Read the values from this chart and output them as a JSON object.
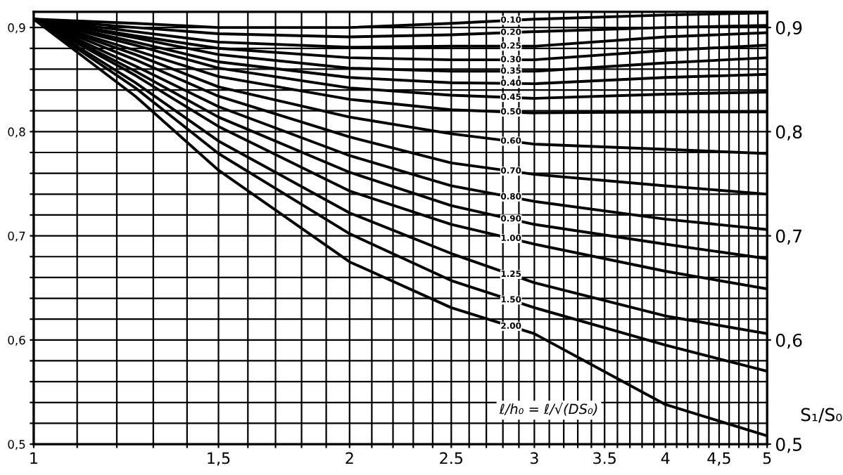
{
  "chart_data": {
    "type": "line",
    "log": "x",
    "y2label": "S₁/S₀",
    "xlim": [
      1,
      5
    ],
    "xticks": [
      {
        "value": 1,
        "label": "1"
      },
      {
        "value": 1.1,
        "label": null
      },
      {
        "value": 1.2,
        "label": null
      },
      {
        "value": 1.3,
        "label": null
      },
      {
        "value": 1.4,
        "label": null
      },
      {
        "value": 1.5,
        "label": "1,5"
      },
      {
        "value": 1.6,
        "label": null
      },
      {
        "value": 1.7,
        "label": null
      },
      {
        "value": 1.8,
        "label": null
      },
      {
        "value": 1.9,
        "label": null
      },
      {
        "value": 2,
        "label": "2"
      },
      {
        "value": 2.1,
        "label": null
      },
      {
        "value": 2.2,
        "label": null
      },
      {
        "value": 2.3,
        "label": null
      },
      {
        "value": 2.4,
        "label": null
      },
      {
        "value": 2.5,
        "label": "2.5"
      },
      {
        "value": 2.6,
        "label": null
      },
      {
        "value": 2.7,
        "label": null
      },
      {
        "value": 2.8,
        "label": null
      },
      {
        "value": 2.9,
        "label": null
      },
      {
        "value": 3,
        "label": "3"
      },
      {
        "value": 3.1,
        "label": null
      },
      {
        "value": 3.2,
        "label": null
      },
      {
        "value": 3.3,
        "label": null
      },
      {
        "value": 3.4,
        "label": null
      },
      {
        "value": 3.5,
        "label": "3.5"
      },
      {
        "value": 3.6,
        "label": null
      },
      {
        "value": 3.7,
        "label": null
      },
      {
        "value": 3.8,
        "label": null
      },
      {
        "value": 3.9,
        "label": null
      },
      {
        "value": 4,
        "label": "4"
      },
      {
        "value": 4.1,
        "label": null
      },
      {
        "value": 4.2,
        "label": null
      },
      {
        "value": 4.3,
        "label": null
      },
      {
        "value": 4.4,
        "label": null
      },
      {
        "value": 4.5,
        "label": "4,5"
      },
      {
        "value": 4.6,
        "label": null
      },
      {
        "value": 4.7,
        "label": null
      },
      {
        "value": 4.8,
        "label": null
      },
      {
        "value": 4.9,
        "label": null
      },
      {
        "value": 5,
        "label": "5"
      }
    ],
    "ylim": [
      0.5,
      0.915
    ],
    "yticks": [
      {
        "value": 0.5,
        "label": "0,5"
      },
      {
        "value": 0.52,
        "label": null
      },
      {
        "value": 0.54,
        "label": null
      },
      {
        "value": 0.56,
        "label": null
      },
      {
        "value": 0.58,
        "label": null
      },
      {
        "value": 0.6,
        "label": "0,6"
      },
      {
        "value": 0.62,
        "label": null
      },
      {
        "value": 0.64,
        "label": null
      },
      {
        "value": 0.66,
        "label": null
      },
      {
        "value": 0.68,
        "label": null
      },
      {
        "value": 0.7,
        "label": "0,7"
      },
      {
        "value": 0.72,
        "label": null
      },
      {
        "value": 0.74,
        "label": null
      },
      {
        "value": 0.76,
        "label": null
      },
      {
        "value": 0.78,
        "label": null
      },
      {
        "value": 0.8,
        "label": "0,8"
      },
      {
        "value": 0.82,
        "label": null
      },
      {
        "value": 0.84,
        "label": null
      },
      {
        "value": 0.86,
        "label": null
      },
      {
        "value": 0.88,
        "label": null
      },
      {
        "value": 0.9,
        "label": "0,9"
      }
    ],
    "y2lim": [
      0.5,
      0.915
    ],
    "y2ticks": [
      {
        "value": 0.5,
        "label": "0,5"
      },
      {
        "value": 0.6,
        "label": "0,6"
      },
      {
        "value": 0.7,
        "label": "0,7"
      },
      {
        "value": 0.8,
        "label": "0,8"
      },
      {
        "value": 0.9,
        "label": "0,9"
      }
    ],
    "grid": true,
    "marker": "none",
    "line_style": "solid",
    "x": [
      1,
      1.25,
      1.5,
      2,
      2.5,
      3,
      4,
      5
    ],
    "series": [
      {
        "name": "0.10",
        "color": "#000000",
        "values": [
          0.908,
          0.904,
          0.9,
          0.9,
          0.904,
          0.908,
          0.912,
          0.914
        ]
      },
      {
        "name": "0.20",
        "color": "#000000",
        "values": [
          0.908,
          0.9,
          0.894,
          0.891,
          0.893,
          0.896,
          0.9,
          0.902
        ]
      },
      {
        "name": "0.25",
        "color": "#000000",
        "values": [
          0.908,
          0.896,
          0.886,
          0.881,
          0.882,
          0.882,
          0.891,
          0.895
        ]
      },
      {
        "name": "0.30",
        "color": "#000000",
        "values": [
          0.908,
          0.892,
          0.88,
          0.871,
          0.869,
          0.869,
          0.878,
          0.883
        ]
      },
      {
        "name": "0.35",
        "color": "#000000",
        "values": [
          0.908,
          0.89,
          0.874,
          0.861,
          0.858,
          0.858,
          0.866,
          0.871
        ]
      },
      {
        "name": "0.40",
        "color": "#000000",
        "values": [
          0.908,
          0.886,
          0.867,
          0.852,
          0.847,
          0.846,
          0.852,
          0.855
        ]
      },
      {
        "name": "0.45",
        "color": "#000000",
        "values": [
          0.908,
          0.883,
          0.861,
          0.842,
          0.835,
          0.832,
          0.836,
          0.838
        ]
      },
      {
        "name": "0.50",
        "color": "#000000",
        "values": [
          0.908,
          0.878,
          0.853,
          0.831,
          0.821,
          0.818,
          0.819,
          0.819
        ]
      },
      {
        "name": "0.60",
        "color": "#000000",
        "values": [
          0.908,
          0.874,
          0.843,
          0.814,
          0.798,
          0.788,
          0.783,
          0.779
        ]
      },
      {
        "name": "0.70",
        "color": "#000000",
        "values": [
          0.908,
          0.869,
          0.834,
          0.795,
          0.77,
          0.759,
          0.748,
          0.74
        ]
      },
      {
        "name": "0.80",
        "color": "#000000",
        "values": [
          0.908,
          0.863,
          0.824,
          0.777,
          0.748,
          0.733,
          0.716,
          0.706
        ]
      },
      {
        "name": "0.90",
        "color": "#000000",
        "values": [
          0.908,
          0.858,
          0.814,
          0.761,
          0.729,
          0.711,
          0.692,
          0.678
        ]
      },
      {
        "name": "1.00",
        "color": "#000000",
        "values": [
          0.908,
          0.854,
          0.805,
          0.743,
          0.711,
          0.692,
          0.666,
          0.649
        ]
      },
      {
        "name": "1.25",
        "color": "#000000",
        "values": [
          0.908,
          0.847,
          0.791,
          0.722,
          0.683,
          0.655,
          0.623,
          0.606
        ]
      },
      {
        "name": "1.50",
        "color": "#000000",
        "values": [
          0.908,
          0.842,
          0.779,
          0.702,
          0.657,
          0.631,
          0.595,
          0.57
        ]
      },
      {
        "name": "2.00",
        "color": "#000000",
        "values": [
          0.908,
          0.834,
          0.763,
          0.675,
          0.631,
          0.606,
          0.538,
          0.508
        ]
      }
    ],
    "annotations": [
      "ℓ/h₀ = ℓ/√(DS₀)"
    ]
  }
}
